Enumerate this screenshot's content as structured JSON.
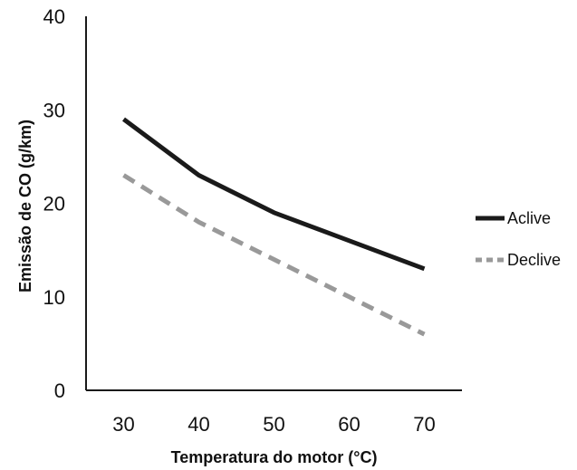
{
  "chart_data": {
    "type": "line",
    "title": "",
    "xlabel": "Temperatura do motor (°C)",
    "ylabel": "Emissão de CO (g/km)",
    "x": [
      30,
      40,
      50,
      60,
      70
    ],
    "xlim": [
      25,
      75
    ],
    "ylim": [
      0,
      40
    ],
    "x_ticks": [
      "30",
      "40",
      "50",
      "60",
      "70"
    ],
    "y_ticks": [
      "0",
      "10",
      "20",
      "30",
      "40"
    ],
    "grid": false,
    "legend_position": "right",
    "series": [
      {
        "name": "Aclive",
        "values": [
          29,
          23,
          19,
          16,
          13
        ],
        "color": "#1a1a1a",
        "style": "solid"
      },
      {
        "name": "Declive",
        "values": [
          23,
          18,
          14,
          10,
          6
        ],
        "color": "#999999",
        "style": "dashed"
      }
    ]
  }
}
